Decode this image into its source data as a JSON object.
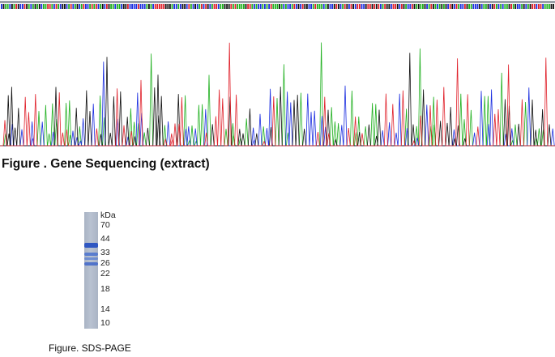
{
  "sequencing": {
    "caption": "Figure . Gene Sequencing (extract)",
    "base_colors": {
      "A": "#1fb01f",
      "C": "#1b2ee0",
      "G": "#111111",
      "T": "#e0202a"
    }
  },
  "sds_page": {
    "caption": "Figure. SDS-PAGE",
    "unit": "kDa",
    "markers": [
      "70",
      "44",
      "33",
      "26",
      "22",
      "18",
      "14",
      "10"
    ],
    "band_color": "#3a63c8"
  }
}
